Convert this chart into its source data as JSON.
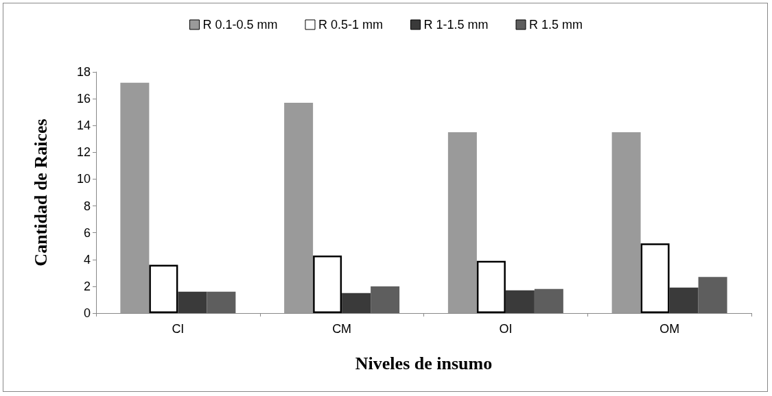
{
  "chart_data": {
    "type": "bar",
    "xlabel": "Niveles de insumo",
    "ylabel": "Cantidad de Raices",
    "categories": [
      "CI",
      "CM",
      "OI",
      "OM"
    ],
    "series": [
      {
        "name": "R 0.1-0.5 mm",
        "color": "#9a9a9a",
        "values": [
          17.2,
          15.7,
          13.5,
          13.5
        ]
      },
      {
        "name": "R 0.5-1 mm",
        "color": "#ffffff",
        "values": [
          3.6,
          4.3,
          3.9,
          5.2
        ]
      },
      {
        "name": "R 1-1.5 mm",
        "color": "#3a3a3a",
        "values": [
          1.6,
          1.5,
          1.7,
          1.9
        ]
      },
      {
        "name": "R 1.5 mm",
        "color": "#5e5e5e",
        "values": [
          1.6,
          2.0,
          1.8,
          2.7
        ]
      }
    ],
    "ylim": [
      0,
      18
    ],
    "yticks": [
      0,
      2,
      4,
      6,
      8,
      10,
      12,
      14,
      16,
      18
    ],
    "grid": false,
    "legend": "top"
  }
}
